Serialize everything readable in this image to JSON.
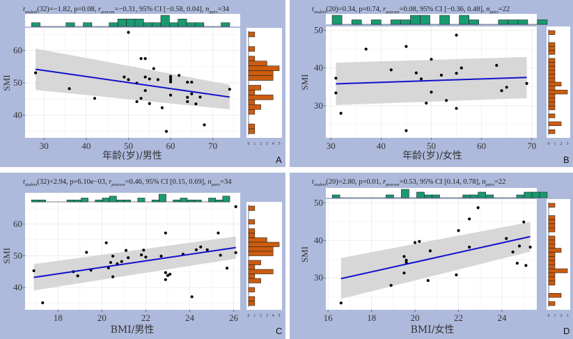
{
  "colors": {
    "panel_bg": "#aebadc",
    "plot_bg": "#ffffff",
    "grid": "#ebebeb",
    "points": "#000000",
    "fit_line": "#1010cc",
    "ci_band": "#d0d0d0",
    "hist_top": "#1a9a72",
    "hist_side": "#cc5c0f"
  },
  "chart_data": [
    {
      "panel": "A",
      "type": "scatter",
      "stats": {
        "t_label": "t",
        "t_sub": "student",
        "df": "32",
        "t": "−1.82",
        "p": "p=0.08",
        "r_sub": "pearson",
        "r": "=−0.31",
        "ci": "95% CI [−0.58, 0.04]",
        "n_sub": "pairs",
        "n": "=34"
      },
      "xlabel": "年龄(岁)/男性",
      "ylabel": "SMI",
      "xlim": [
        25.5,
        76.5
      ],
      "ylim": [
        33,
        67
      ],
      "xticks": [
        30,
        40,
        50,
        60,
        70
      ],
      "yticks": [
        40,
        50,
        60
      ],
      "side_ticks": [
        "0",
        "1",
        "2",
        "3",
        "4",
        "5"
      ],
      "side_max": 5,
      "fit": {
        "x": [
          28,
          74
        ],
        "y": [
          54.2,
          45.6
        ],
        "ci_upper": [
          60.6,
          49.4
        ],
        "ci_lower": [
          47.8,
          41.8
        ]
      },
      "x": [
        28,
        36,
        42,
        50,
        49,
        50,
        52,
        52,
        53,
        53,
        54,
        54,
        54,
        55,
        55,
        56,
        57,
        58,
        59,
        60,
        60,
        60,
        60,
        60,
        62,
        64,
        64,
        64,
        65,
        65,
        66,
        67,
        68,
        74
      ],
      "y": [
        53.1,
        48.2,
        45.2,
        65.6,
        51.8,
        51.0,
        49.9,
        44.2,
        45.2,
        57.5,
        57.5,
        51.8,
        47.6,
        51.2,
        43.6,
        54.4,
        51.0,
        42.3,
        35.0,
        51.7,
        52.0,
        50.3,
        51.0,
        46.2,
        52.3,
        50.2,
        45.5,
        44.2,
        50.2,
        46.6,
        43.5,
        45.6,
        37.0,
        48.0
      ],
      "top_hist": [
        1,
        0,
        0,
        0,
        1,
        0,
        1,
        0,
        0,
        1,
        2,
        2,
        2,
        1,
        1,
        3,
        1,
        2,
        1,
        1,
        0,
        0,
        1
      ],
      "side_hist": [
        1,
        0,
        0,
        1,
        0,
        1,
        3,
        5,
        4,
        4,
        0,
        2,
        1,
        4,
        1,
        2,
        1,
        0,
        0,
        1,
        1
      ]
    },
    {
      "panel": "B",
      "type": "scatter",
      "stats": {
        "t_label": "t",
        "t_sub": "student",
        "df": "20",
        "t": "0.34",
        "p": "p=0.74",
        "r_sub": "pearson",
        "r": "=0.08",
        "ci": "95% CI [−0.36, 0.48]",
        "n_sub": "pairs",
        "n": "=22"
      },
      "xlabel": "年龄(岁)/女性",
      "ylabel": "SMI",
      "xlim": [
        29,
        71
      ],
      "ylim": [
        21.5,
        51
      ],
      "xticks": [
        30,
        40,
        50,
        60,
        70
      ],
      "yticks": [
        30,
        40,
        50
      ],
      "side_ticks": [
        "0",
        "1",
        "2",
        "3"
      ],
      "side_max": 3,
      "fit": {
        "x": [
          31,
          69
        ],
        "y": [
          35.8,
          37.5
        ],
        "ci_upper": [
          41.4,
          42.9
        ],
        "ci_lower": [
          30.2,
          32.0
        ]
      },
      "x": [
        31,
        31,
        32,
        37,
        42,
        45,
        45,
        47,
        48,
        49,
        50,
        50,
        52,
        53,
        55,
        55,
        55,
        56,
        63,
        64,
        65,
        69
      ],
      "y": [
        37.3,
        33.4,
        28.0,
        45.0,
        39.5,
        45.7,
        23.4,
        38.7,
        37.1,
        30.7,
        42.3,
        33.6,
        38.1,
        31.4,
        48.7,
        38.6,
        29.3,
        40.0,
        40.7,
        34.0,
        34.9,
        35.9
      ],
      "top_hist": [
        2,
        0,
        1,
        0,
        1,
        0,
        1,
        1,
        2,
        2,
        0,
        2,
        0,
        2,
        1,
        0,
        0,
        1,
        1,
        1,
        0,
        1
      ],
      "side_hist": [
        1,
        0,
        0,
        1,
        1,
        1,
        0,
        1,
        1,
        1,
        1,
        1,
        1,
        2,
        1,
        3,
        1,
        1,
        1,
        1,
        0,
        1,
        0,
        2,
        0,
        1
      ]
    },
    {
      "panel": "C",
      "type": "scatter",
      "stats": {
        "t_label": "t",
        "t_sub": "student",
        "df": "32",
        "t": "2.94",
        "p": "p=6.10e−03",
        "r_sub": "pearson",
        "r": "=0.46",
        "ci": "95% CI [0.15, 0.69]",
        "n_sub": "pairs",
        "n": "=34"
      },
      "xlabel": "BMI/男性",
      "ylabel": "SMI",
      "xlim": [
        16.5,
        26.3
      ],
      "ylim": [
        33,
        67
      ],
      "xticks": [
        18,
        20,
        22,
        24,
        26
      ],
      "yticks": [
        40,
        50,
        60
      ],
      "side_ticks": [
        "0",
        "1",
        "2",
        "3",
        "4",
        "5"
      ],
      "side_max": 5,
      "fit": {
        "x": [
          16.9,
          26.1
        ],
        "y": [
          43.2,
          52.6
        ],
        "ci_upper": [
          47.4,
          56.1
        ],
        "ci_lower": [
          39.1,
          49.1
        ]
      },
      "x": [
        16.9,
        17.3,
        18.7,
        18.9,
        19.3,
        19.5,
        20.2,
        20.3,
        20.4,
        20.5,
        20.5,
        20.7,
        20.9,
        21.1,
        21.2,
        21.8,
        21.9,
        22.0,
        22.7,
        22.9,
        22.9,
        22.9,
        23.0,
        23.1,
        23.7,
        24.1,
        24.3,
        24.5,
        24.8,
        25.3,
        25.4,
        25.7,
        26.1,
        26.1
      ],
      "y": [
        45.3,
        35.2,
        45.0,
        43.7,
        51.1,
        45.5,
        54.1,
        46.2,
        47.9,
        49.9,
        43.4,
        47.5,
        48.2,
        51.7,
        49.4,
        50.3,
        51.8,
        49.6,
        49.9,
        57.2,
        44.7,
        42.5,
        43.8,
        44.2,
        50.5,
        37.1,
        51.9,
        52.8,
        51.9,
        57.2,
        50.2,
        46.1,
        65.5,
        51.0
      ],
      "top_hist": [
        1,
        1,
        0,
        0,
        0,
        1,
        1,
        2,
        0,
        1,
        2,
        3,
        1,
        1,
        0,
        2,
        0,
        1,
        4,
        0,
        1,
        2,
        1,
        1,
        0,
        2,
        1,
        3
      ],
      "side_hist": [
        1,
        0,
        0,
        1,
        0,
        1,
        1,
        3,
        5,
        4,
        4,
        0,
        2,
        1,
        4,
        1,
        2,
        0,
        1,
        0,
        1,
        1
      ]
    },
    {
      "panel": "D",
      "type": "scatter",
      "stats": {
        "t_label": "t",
        "t_sub": "student",
        "df": "20",
        "t": "2.80",
        "p": "p=0.01",
        "r_sub": "pearson",
        "r": "=0.53",
        "ci": "95% CI [0.14, 0.78]",
        "n_sub": "pairs",
        "n": "=22"
      },
      "xlabel": "BMI/女性",
      "ylabel": "SMI",
      "xlim": [
        15.9,
        25.6
      ],
      "ylim": [
        21.5,
        51
      ],
      "xticks": [
        16,
        18,
        20,
        22,
        24
      ],
      "yticks": [
        30,
        40,
        50
      ],
      "side_ticks": [
        "0",
        "1",
        "2",
        "3"
      ],
      "side_max": 3,
      "fit": {
        "x": [
          16.6,
          25.3
        ],
        "y": [
          29.8,
          41.0
        ],
        "ci_upper": [
          35.3,
          44.9
        ],
        "ci_lower": [
          24.4,
          37.0
        ]
      },
      "x": [
        16.6,
        18.9,
        19.5,
        19.6,
        19.6,
        19.5,
        20.0,
        20.2,
        20.6,
        20.7,
        21.9,
        22.0,
        22.5,
        22.5,
        22.9,
        24.2,
        24.5,
        24.7,
        24.8,
        25.0,
        25.1,
        25.3
      ],
      "y": [
        23.3,
        28.0,
        35.7,
        34.7,
        34.1,
        31.3,
        39.4,
        39.7,
        29.3,
        37.2,
        30.8,
        42.6,
        38.2,
        45.7,
        48.7,
        40.5,
        36.9,
        33.9,
        38.5,
        44.9,
        33.3,
        38.2
      ],
      "top_hist": [
        1,
        0,
        0,
        0,
        0,
        0,
        0,
        1,
        0,
        3,
        0,
        2,
        1,
        1,
        0,
        0,
        0,
        1,
        1,
        2,
        1,
        0,
        0,
        0,
        1,
        2,
        2,
        2
      ],
      "side_hist": [
        1,
        0,
        0,
        1,
        1,
        1,
        1,
        0,
        1,
        1,
        1,
        2,
        1,
        1,
        1,
        1,
        3,
        1,
        1,
        1,
        0,
        0,
        2,
        0,
        1
      ]
    }
  ]
}
